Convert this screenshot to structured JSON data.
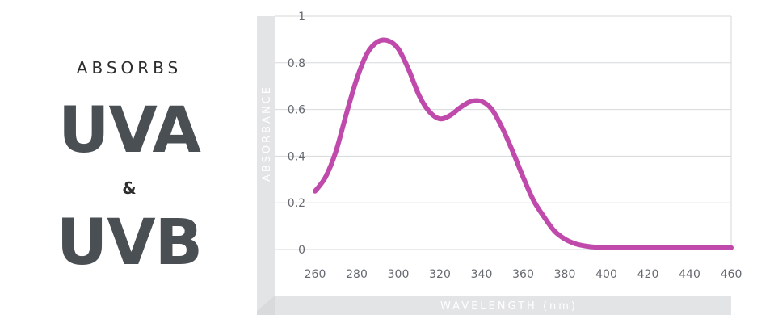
{
  "headline": {
    "absorbs": "ABSORBS",
    "uva": "UVA",
    "amp": "&",
    "uvb": "UVB"
  },
  "colors": {
    "curve": "#c04aab",
    "frame": "#e3e4e5",
    "grid": "#d6d8da",
    "heading": "#4a4f54"
  },
  "chart_data": {
    "type": "line",
    "title": "",
    "xlabel": "WAVELENGTH (nm)",
    "ylabel": "ABSORBANCE",
    "xlim": [
      260,
      460
    ],
    "ylim": [
      0,
      1
    ],
    "xticks": [
      "260",
      "280",
      "300",
      "320",
      "340",
      "360",
      "380",
      "400",
      "420",
      "440",
      "460"
    ],
    "yticks": [
      "0",
      "0.2",
      "0.4",
      "0.6",
      "0.8",
      "1"
    ],
    "grid": true,
    "series": [
      {
        "x": [
          260,
          265,
          270,
          275,
          280,
          285,
          290,
          295,
          300,
          305,
          310,
          315,
          320,
          325,
          330,
          335,
          340,
          345,
          350,
          355,
          360,
          365,
          370,
          375,
          380,
          385,
          390,
          395,
          400,
          410,
          420,
          440,
          460
        ],
        "y": [
          0.25,
          0.31,
          0.42,
          0.58,
          0.73,
          0.84,
          0.89,
          0.895,
          0.86,
          0.77,
          0.66,
          0.59,
          0.56,
          0.575,
          0.61,
          0.635,
          0.635,
          0.6,
          0.52,
          0.42,
          0.31,
          0.21,
          0.14,
          0.08,
          0.045,
          0.025,
          0.015,
          0.01,
          0.008,
          0.008,
          0.008,
          0.008,
          0.008
        ]
      }
    ]
  }
}
